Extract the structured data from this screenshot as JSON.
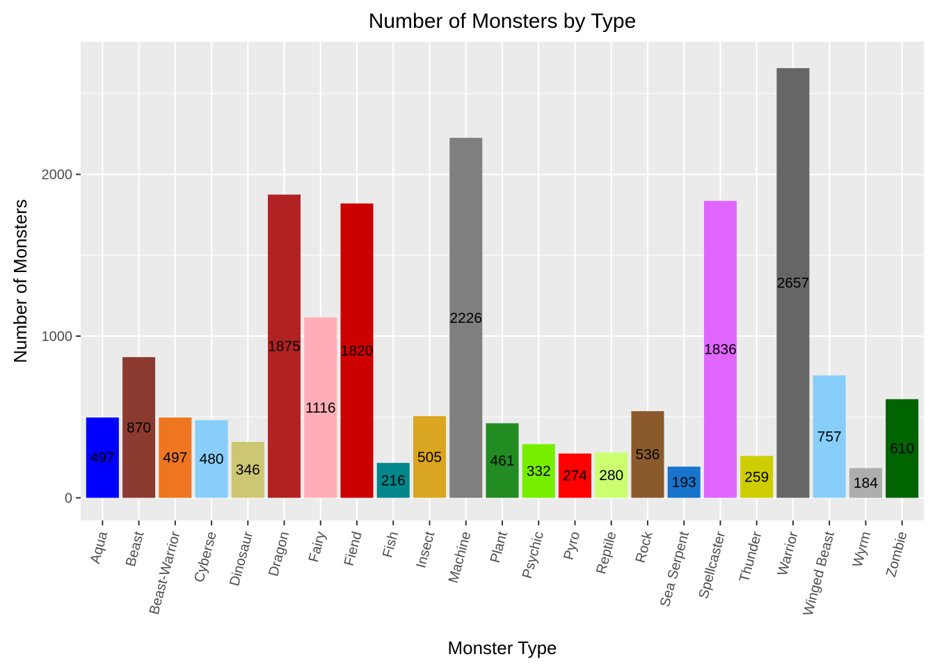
{
  "chart_data": {
    "type": "bar",
    "title": "Number of Monsters by Type",
    "xlabel": "Monster Type",
    "ylabel": "Number of Monsters",
    "ylim": [
      -140,
      2820
    ],
    "yticks": [
      0,
      1000,
      2000
    ],
    "grid": true,
    "legend": "none",
    "categories": [
      "Aqua",
      "Beast",
      "Beast-Warrior",
      "Cyberse",
      "Dinosaur",
      "Dragon",
      "Fairy",
      "Fiend",
      "Fish",
      "Insect",
      "Machine",
      "Plant",
      "Psychic",
      "Pyro",
      "Reptile",
      "Rock",
      "Sea Serpent",
      "Spellcaster",
      "Thunder",
      "Warrior",
      "Winged Beast",
      "Wyrm",
      "Zombie"
    ],
    "values": [
      497,
      870,
      497,
      480,
      346,
      1875,
      1116,
      1820,
      216,
      505,
      2226,
      461,
      332,
      274,
      280,
      536,
      193,
      1836,
      259,
      2657,
      757,
      184,
      610
    ],
    "colors": [
      "#0000FF",
      "#8B3A2F",
      "#EE7621",
      "#87CEFA",
      "#CDC673",
      "#B22222",
      "#FFAEB9",
      "#CD0000",
      "#00868B",
      "#DAA520",
      "#7F7F7F",
      "#228B22",
      "#76EE00",
      "#FF0000",
      "#CAFF70",
      "#8B5A2B",
      "#1874CD",
      "#E066FF",
      "#CDCD00",
      "#666666",
      "#87CEFA",
      "#ADADAD",
      "#006400"
    ]
  }
}
